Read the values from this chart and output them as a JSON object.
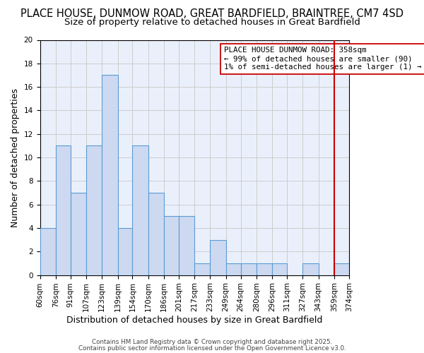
{
  "title": "PLACE HOUSE, DUNMOW ROAD, GREAT BARDFIELD, BRAINTREE, CM7 4SD",
  "subtitle": "Size of property relative to detached houses in Great Bardfield",
  "xlabel": "Distribution of detached houses by size in Great Bardfield",
  "ylabel": "Number of detached properties",
  "bar_values": [
    4,
    11,
    7,
    11,
    17,
    4,
    11,
    7,
    5,
    5,
    1,
    3,
    1,
    1,
    1,
    1,
    0,
    1,
    0,
    1
  ],
  "bin_edges": [
    60,
    76,
    91,
    107,
    123,
    139,
    154,
    170,
    186,
    201,
    217,
    233,
    249,
    264,
    280,
    296,
    311,
    327,
    343,
    359,
    374
  ],
  "tick_labels": [
    "60sqm",
    "76sqm",
    "91sqm",
    "107sqm",
    "123sqm",
    "139sqm",
    "154sqm",
    "170sqm",
    "186sqm",
    "201sqm",
    "217sqm",
    "233sqm",
    "249sqm",
    "264sqm",
    "280sqm",
    "296sqm",
    "311sqm",
    "327sqm",
    "343sqm",
    "359sqm",
    "374sqm"
  ],
  "bar_color": "#ccd9f0",
  "bar_edge_color": "#5b9bd5",
  "grid_color": "#cccccc",
  "background_color": "#eaf0fb",
  "vline_x": 359,
  "vline_color": "#cc0000",
  "ylim": [
    0,
    20
  ],
  "annotation_text": "PLACE HOUSE DUNMOW ROAD: 358sqm\n← 99% of detached houses are smaller (90)\n1% of semi-detached houses are larger (1) →",
  "annotation_box_color": "#ffffff",
  "annotation_box_edge": "#cc0000",
  "footer1": "Contains HM Land Registry data © Crown copyright and database right 2025.",
  "footer2": "Contains public sector information licensed under the Open Government Licence v3.0.",
  "title_fontsize": 10.5,
  "subtitle_fontsize": 9.5,
  "tick_fontsize": 7.5,
  "axis_label_fontsize": 9,
  "annotation_fontsize": 7.8
}
